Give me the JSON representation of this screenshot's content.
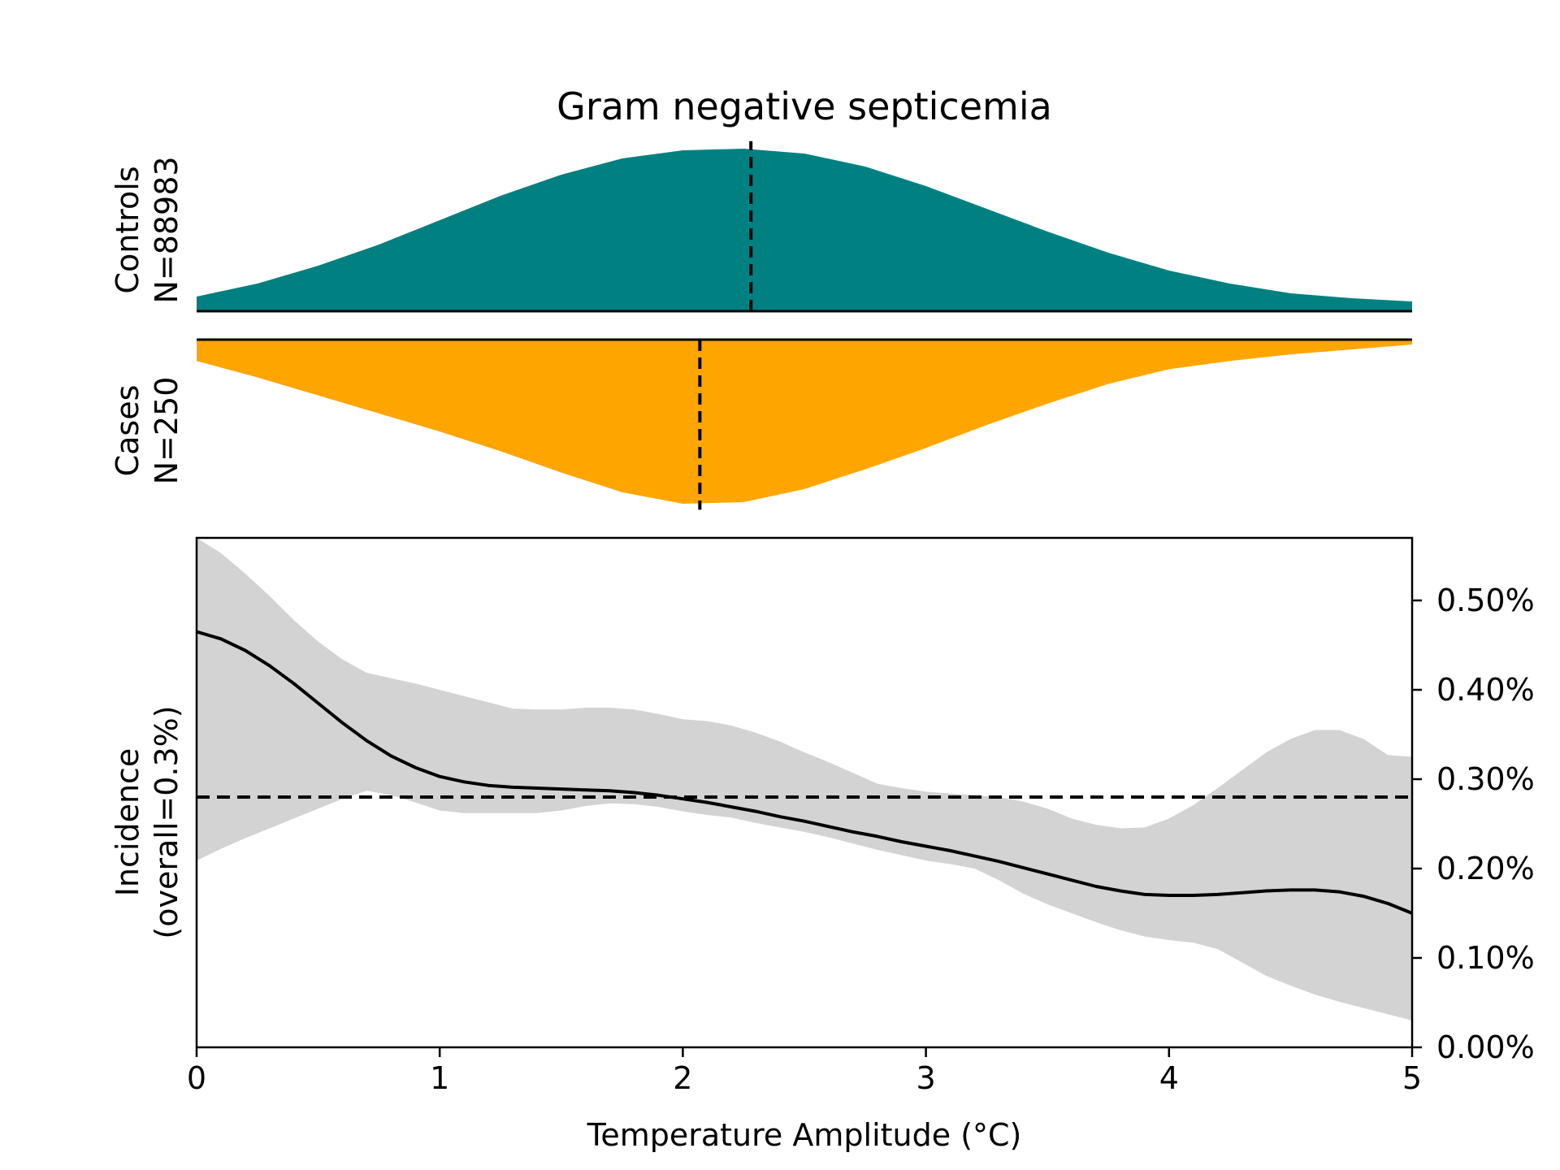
{
  "chart_data": {
    "type": "area",
    "title": "Gram negative septicemia",
    "colors": {
      "controls": "#008080",
      "cases": "#FFA500",
      "ci_band": "#D3D3D3",
      "line": "#000000"
    },
    "controls": {
      "label": "Controls",
      "n_label": "N=88983",
      "median": 2.28,
      "density": {
        "x": [
          0.0,
          0.25,
          0.5,
          0.75,
          1.0,
          1.25,
          1.5,
          1.75,
          2.0,
          2.25,
          2.5,
          2.75,
          3.0,
          3.25,
          3.5,
          3.75,
          4.0,
          4.25,
          4.5,
          4.75,
          5.0
        ],
        "y": [
          0.09,
          0.17,
          0.28,
          0.41,
          0.56,
          0.71,
          0.84,
          0.94,
          0.99,
          1.0,
          0.97,
          0.89,
          0.77,
          0.63,
          0.49,
          0.36,
          0.25,
          0.17,
          0.11,
          0.08,
          0.06
        ]
      }
    },
    "cases": {
      "label": "Cases",
      "n_label": "N=250",
      "median": 2.07,
      "density": {
        "x": [
          0.0,
          0.25,
          0.5,
          0.75,
          1.0,
          1.25,
          1.5,
          1.75,
          2.0,
          2.25,
          2.5,
          2.75,
          3.0,
          3.25,
          3.5,
          3.75,
          4.0,
          4.25,
          4.5,
          4.75,
          5.0
        ],
        "y": [
          0.13,
          0.23,
          0.34,
          0.45,
          0.56,
          0.68,
          0.81,
          0.93,
          1.0,
          0.99,
          0.91,
          0.79,
          0.66,
          0.52,
          0.39,
          0.27,
          0.18,
          0.13,
          0.09,
          0.06,
          0.03
        ]
      }
    },
    "incidence": {
      "ylabel_line1": "Incidence",
      "ylabel_line2": "(overall=0.3%)",
      "xlabel": "Temperature Amplitude (°C)",
      "xlim": [
        0,
        5
      ],
      "ylim": [
        0,
        0.57
      ],
      "overall": 0.28,
      "xticks": [
        0,
        1,
        2,
        3,
        4,
        5
      ],
      "xtick_labels": [
        "0",
        "1",
        "2",
        "3",
        "4",
        "5"
      ],
      "yticks": [
        0.0,
        0.1,
        0.2,
        0.3,
        0.4,
        0.5
      ],
      "ytick_labels": [
        "0.00%",
        "0.10%",
        "0.20%",
        "0.30%",
        "0.40%",
        "0.50%"
      ],
      "x": [
        0.0,
        0.1,
        0.2,
        0.3,
        0.4,
        0.5,
        0.6,
        0.7,
        0.8,
        0.9,
        1.0,
        1.1,
        1.2,
        1.3,
        1.4,
        1.5,
        1.6,
        1.7,
        1.8,
        1.9,
        2.0,
        2.1,
        2.2,
        2.3,
        2.4,
        2.5,
        2.6,
        2.7,
        2.8,
        2.9,
        3.0,
        3.1,
        3.2,
        3.3,
        3.4,
        3.5,
        3.6,
        3.7,
        3.8,
        3.9,
        4.0,
        4.1,
        4.2,
        4.3,
        4.4,
        4.5,
        4.6,
        4.7,
        4.8,
        4.9,
        5.0
      ],
      "mean": [
        0.465,
        0.457,
        0.444,
        0.427,
        0.407,
        0.385,
        0.363,
        0.343,
        0.326,
        0.313,
        0.303,
        0.297,
        0.293,
        0.291,
        0.29,
        0.289,
        0.288,
        0.287,
        0.285,
        0.282,
        0.278,
        0.274,
        0.269,
        0.264,
        0.258,
        0.253,
        0.247,
        0.241,
        0.236,
        0.23,
        0.225,
        0.22,
        0.214,
        0.208,
        0.201,
        0.194,
        0.187,
        0.18,
        0.175,
        0.171,
        0.17,
        0.17,
        0.171,
        0.173,
        0.175,
        0.176,
        0.176,
        0.174,
        0.169,
        0.161,
        0.15
      ],
      "upper": [
        0.57,
        0.553,
        0.53,
        0.505,
        0.478,
        0.454,
        0.434,
        0.419,
        0.413,
        0.407,
        0.4,
        0.393,
        0.386,
        0.379,
        0.378,
        0.378,
        0.38,
        0.38,
        0.378,
        0.373,
        0.367,
        0.365,
        0.36,
        0.352,
        0.342,
        0.33,
        0.319,
        0.307,
        0.295,
        0.29,
        0.286,
        0.284,
        0.282,
        0.28,
        0.275,
        0.267,
        0.256,
        0.249,
        0.245,
        0.246,
        0.256,
        0.271,
        0.29,
        0.31,
        0.33,
        0.345,
        0.355,
        0.355,
        0.345,
        0.327,
        0.325
      ],
      "lower": [
        0.209,
        0.222,
        0.234,
        0.245,
        0.256,
        0.267,
        0.278,
        0.287,
        0.282,
        0.274,
        0.265,
        0.262,
        0.262,
        0.262,
        0.262,
        0.265,
        0.27,
        0.273,
        0.272,
        0.269,
        0.264,
        0.26,
        0.257,
        0.251,
        0.246,
        0.241,
        0.235,
        0.228,
        0.221,
        0.215,
        0.209,
        0.205,
        0.2,
        0.187,
        0.172,
        0.16,
        0.15,
        0.14,
        0.131,
        0.124,
        0.12,
        0.117,
        0.11,
        0.095,
        0.08,
        0.069,
        0.059,
        0.051,
        0.044,
        0.037,
        0.03
      ]
    }
  }
}
